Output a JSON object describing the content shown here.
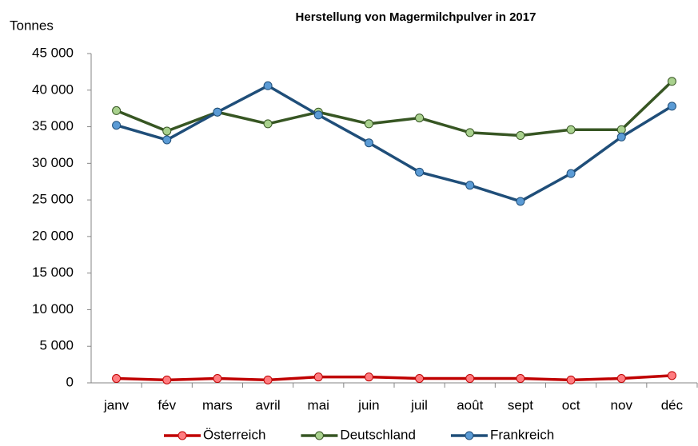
{
  "chart_data": {
    "type": "line",
    "title": "Herstellung von Magermilchpulver in 2017",
    "y_label": "Tonnes",
    "categories": [
      "janv",
      "fév",
      "mars",
      "avril",
      "mai",
      "juin",
      "juil",
      "août",
      "sept",
      "oct",
      "nov",
      "déc"
    ],
    "series": [
      {
        "name": "Österreich",
        "color": "#c00000",
        "marker_color": "#ff7c80",
        "values": [
          600,
          400,
          600,
          400,
          800,
          800,
          600,
          600,
          600,
          400,
          600,
          1000
        ]
      },
      {
        "name": "Deutschland",
        "color": "#375623",
        "marker_color": "#a9d18e",
        "values": [
          37200,
          34400,
          37000,
          35400,
          37000,
          35400,
          36200,
          34200,
          33800,
          34600,
          34600,
          41200
        ]
      },
      {
        "name": "Frankreich",
        "color": "#1f4e79",
        "marker_color": "#5b9bd5",
        "values": [
          35200,
          33200,
          37000,
          40600,
          36600,
          32800,
          28800,
          27000,
          24800,
          28600,
          33600,
          37800
        ]
      }
    ],
    "ylim": [
      0,
      45000
    ],
    "yticks": [
      0,
      {
        "value": 5000,
        "label": "5 000"
      },
      {
        "value": 10000,
        "label": "10 000"
      },
      {
        "value": 15000,
        "label": "15 000"
      },
      {
        "value": 20000,
        "label": "20 000"
      },
      {
        "value": 25000,
        "label": "25 000"
      },
      {
        "value": 30000,
        "label": "30 000"
      },
      {
        "value": 35000,
        "label": "35 000"
      },
      {
        "value": 40000,
        "label": "40 000"
      },
      {
        "value": 45000,
        "label": "45 000"
      }
    ],
    "grid": false,
    "legend": "bottom"
  }
}
